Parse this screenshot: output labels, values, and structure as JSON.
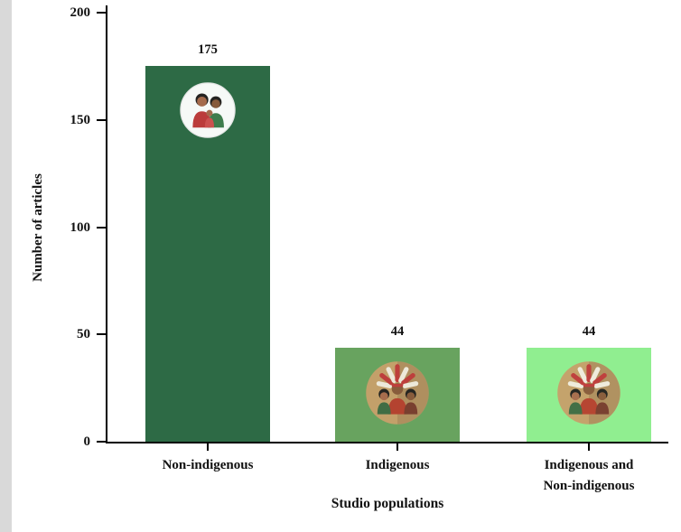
{
  "figure": {
    "background": "#ffffff",
    "left_strip_color": "#d9d9d9"
  },
  "chart_data": {
    "type": "bar",
    "title": "",
    "xlabel": "Studio populations",
    "ylabel": "Number of articles",
    "categories": [
      "Non-indigenous",
      "Indigenous",
      "Indigenous and\nNon-indigenous"
    ],
    "values": [
      175,
      44,
      44
    ],
    "value_labels": [
      "175",
      "44",
      "44"
    ],
    "bar_colors": [
      "#2d6a45",
      "#68a35f",
      "#90ee90"
    ],
    "bar_icons": [
      "two-women-icon",
      "indigenous-family-icon",
      "indigenous-family-icon"
    ],
    "ylim": [
      0,
      200
    ],
    "yticks": [
      0,
      50,
      100,
      150,
      200
    ],
    "grid": false,
    "legend": null,
    "axis_color": "#000000",
    "text_color": "#111111"
  }
}
